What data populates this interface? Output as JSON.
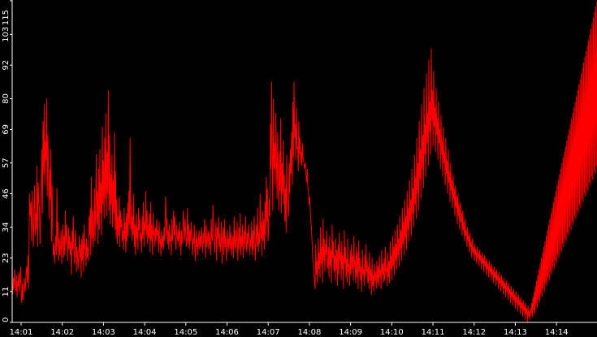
{
  "chart_data": {
    "type": "line",
    "title": "",
    "xlabel": "",
    "ylabel": "",
    "ylim": [
      0,
      115
    ],
    "y_ticks": [
      0,
      11,
      23,
      34,
      46,
      57,
      69,
      80,
      92,
      103,
      115
    ],
    "x_ticks": [
      "14:01",
      "14:02",
      "14:03",
      "14:04",
      "14:05",
      "14:06",
      "14:07",
      "14:08",
      "14:09",
      "14:10",
      "14:11",
      "14:12",
      "14:13",
      "14:14"
    ],
    "grid": false,
    "background": "#000000",
    "axis_color": "#ffffff",
    "series": [
      {
        "color": "#ff0000",
        "time_start": "14:00:47",
        "time_end": "14:14:59",
        "values": [
          13,
          10,
          16,
          12,
          19,
          14,
          11,
          17,
          9,
          15,
          13,
          18,
          11,
          16,
          20,
          10,
          7,
          14,
          8,
          12,
          16,
          11,
          13,
          18,
          20,
          14,
          24,
          12,
          33,
          46,
          38,
          43,
          29,
          47,
          35,
          27,
          40,
          49,
          31,
          39,
          33,
          56,
          27,
          50,
          43,
          41,
          28,
          35,
          48,
          62,
          39,
          72,
          53,
          78,
          49,
          65,
          58,
          80,
          45,
          67,
          56,
          37,
          55,
          44,
          62,
          29,
          49,
          33,
          24,
          28,
          21,
          26,
          31,
          24,
          48,
          27,
          36,
          22,
          30,
          24,
          27,
          33,
          21,
          29,
          35,
          23,
          31,
          24,
          40,
          28,
          35,
          30,
          22,
          34,
          26,
          31,
          24,
          29,
          17,
          33,
          26,
          38,
          25,
          21,
          29,
          33,
          18,
          27,
          24,
          19,
          24,
          31,
          23,
          28,
          16,
          30,
          22,
          32,
          18,
          35,
          26,
          28,
          20,
          30,
          23,
          27,
          22,
          38,
          31,
          41,
          24,
          52,
          30,
          40,
          27,
          33,
          48,
          29,
          41,
          60,
          35,
          47,
          28,
          55,
          33,
          62,
          39,
          50,
          31,
          70,
          42,
          58,
          37,
          66,
          44,
          75,
          38,
          61,
          46,
          83,
          40,
          67,
          35,
          53,
          42,
          60,
          34,
          51,
          39,
          68,
          33,
          54,
          30,
          44,
          28,
          38,
          31,
          45,
          27,
          40,
          34,
          37,
          29,
          33,
          26,
          41,
          30,
          36,
          25,
          39,
          29,
          43,
          31,
          47,
          35,
          66,
          33,
          42,
          29,
          38,
          31,
          46,
          27,
          35,
          24,
          39,
          30,
          34,
          26,
          41,
          33,
          37,
          29,
          32,
          25,
          38,
          30,
          43,
          27,
          36,
          33,
          47,
          31,
          40,
          28,
          35,
          30,
          39,
          25,
          43,
          29,
          35,
          24,
          39,
          31,
          33,
          27,
          34,
          29,
          37,
          31,
          33,
          25,
          36,
          28,
          30,
          24,
          33,
          27,
          31,
          26,
          34,
          29,
          38,
          45,
          31,
          37,
          28,
          33,
          26,
          35,
          29,
          31,
          24,
          37,
          29,
          33,
          40,
          31,
          38,
          28,
          26,
          35,
          31,
          29,
          33,
          27,
          36,
          30,
          24,
          33,
          28,
          31,
          40,
          34,
          29,
          37,
          32,
          27,
          30,
          41,
          28,
          35,
          26,
          33,
          29,
          36,
          31,
          24,
          30,
          28,
          35,
          26,
          22,
          33,
          27,
          30,
          24,
          29,
          33,
          26,
          31,
          27,
          34,
          29,
          25,
          32,
          28,
          37,
          31,
          23,
          35,
          27,
          30,
          33,
          26,
          32,
          28,
          24,
          37,
          30,
          29,
          42,
          33,
          28,
          25,
          31,
          36,
          22,
          34,
          30,
          38,
          27,
          32,
          25,
          29,
          36,
          21,
          30,
          34,
          24,
          37,
          27,
          31,
          22,
          28,
          33,
          25,
          30,
          27,
          35,
          26,
          32,
          24,
          29,
          31,
          23,
          38,
          27,
          33,
          25,
          30,
          36,
          22,
          28,
          34,
          26,
          39,
          24,
          31,
          27,
          35,
          23,
          30,
          33,
          26,
          38,
          29,
          25,
          32,
          28,
          35,
          31,
          24,
          30,
          27,
          36,
          24,
          33,
          26,
          38,
          31,
          22,
          29,
          35,
          27,
          41,
          25,
          32,
          28,
          46,
          30,
          36,
          24,
          40,
          29,
          37,
          26,
          43,
          31,
          52,
          36,
          48,
          29,
          33,
          44,
          38,
          71,
          55,
          86,
          60,
          40,
          80,
          55,
          64,
          49,
          75,
          58,
          44,
          68,
          52,
          40,
          61,
          47,
          73,
          39,
          57,
          46,
          65,
          42,
          53,
          36,
          48,
          32,
          60,
          44,
          41,
          38,
          57,
          46,
          62,
          53,
          68,
          49,
          79,
          59,
          86,
          66,
          71,
          58,
          77,
          62,
          63,
          54,
          72,
          60,
          66,
          57,
          61,
          56,
          64,
          59,
          58,
          55,
          56,
          57,
          52,
          50,
          55,
          48,
          46,
          42,
          45,
          39,
          36,
          33,
          28,
          23,
          21,
          17,
          14,
          12,
          28,
          17,
          22,
          14,
          30,
          19,
          25,
          16,
          34,
          21,
          27,
          14,
          37,
          22,
          30,
          18,
          28,
          24,
          33,
          21,
          19,
          27,
          16,
          31,
          20,
          26,
          14,
          35,
          23,
          29,
          18,
          24,
          15,
          30,
          19,
          26,
          13,
          28,
          17,
          32,
          22,
          25,
          15,
          29,
          19,
          24,
          12,
          33,
          21,
          27,
          16,
          23,
          14,
          30,
          18,
          21,
          13,
          26,
          17,
          28,
          19,
          24,
          15,
          31,
          20,
          22,
          14,
          27,
          16,
          25,
          12,
          29,
          18,
          23,
          15,
          20,
          11,
          26,
          17,
          19,
          13,
          24,
          16,
          28,
          18,
          22,
          14,
          20,
          12,
          25,
          15,
          19,
          10,
          23,
          13,
          17,
          11,
          21,
          15,
          18,
          12,
          22,
          14,
          20,
          13,
          24,
          16,
          19,
          12,
          26,
          17,
          21,
          14,
          23,
          15,
          27,
          18,
          20,
          13,
          25,
          16,
          22,
          14,
          29,
          19,
          24,
          15,
          31,
          20,
          27,
          17,
          33,
          22,
          28,
          19,
          35,
          24,
          30,
          20,
          38,
          26,
          33,
          22,
          41,
          28,
          36,
          24,
          44,
          30,
          38,
          26,
          47,
          33,
          41,
          29,
          51,
          36,
          44,
          31,
          55,
          39,
          48,
          34,
          60,
          42,
          52,
          37,
          66,
          46,
          57,
          40,
          72,
          51,
          62,
          44,
          78,
          55,
          67,
          48,
          84,
          60,
          71,
          52,
          89,
          64,
          75,
          56,
          94,
          68,
          79,
          60,
          98,
          72,
          83,
          63,
          90,
          70,
          77,
          61,
          84,
          67,
          73,
          58,
          79,
          64,
          69,
          55,
          74,
          60,
          65,
          52,
          70,
          57,
          61,
          49,
          66,
          53,
          58,
          46,
          62,
          50,
          54,
          43,
          57,
          47,
          51,
          41,
          53,
          44,
          48,
          38,
          49,
          41,
          45,
          35,
          46,
          38,
          42,
          33,
          43,
          36,
          39,
          31,
          40,
          33,
          36,
          29,
          37,
          31,
          33,
          27,
          34,
          29,
          31,
          25,
          32,
          27,
          29,
          23,
          30,
          25,
          27,
          22,
          28,
          24,
          26,
          21,
          27,
          23,
          25,
          20,
          26,
          22,
          24,
          19,
          25,
          21,
          23,
          18,
          24,
          20,
          22,
          17,
          23,
          19,
          21,
          16,
          22,
          18,
          20,
          15,
          21,
          17,
          19,
          14,
          20,
          16,
          18,
          13,
          19,
          15,
          17,
          12,
          18,
          14,
          16,
          11,
          17,
          13,
          15,
          10,
          16,
          12,
          14,
          9,
          15,
          11,
          13,
          8,
          14,
          10,
          12,
          7,
          13,
          9,
          11,
          6,
          12,
          8,
          10,
          5,
          11,
          7,
          9,
          4,
          10,
          6,
          8,
          3,
          9,
          5,
          7,
          2,
          8,
          4,
          6,
          1,
          7,
          3,
          5,
          0,
          6,
          2,
          4,
          1,
          5,
          3,
          7,
          2,
          9,
          4,
          11,
          3,
          13,
          6,
          15,
          5,
          17,
          8,
          19,
          7,
          21,
          10,
          23,
          9,
          25,
          12,
          27,
          11,
          29,
          14,
          31,
          13,
          33,
          16,
          35,
          15,
          37,
          18,
          39,
          17,
          41,
          20,
          43,
          19,
          45,
          22,
          47,
          21,
          49,
          24,
          51,
          23,
          53,
          26,
          55,
          25,
          57,
          28,
          59,
          27,
          61,
          30,
          63,
          29,
          65,
          32,
          67,
          31,
          69,
          34,
          71,
          33,
          73,
          36,
          75,
          35,
          77,
          38,
          79,
          37,
          81,
          40,
          83,
          39,
          85,
          42,
          87,
          41,
          89,
          44,
          91,
          43,
          93,
          46,
          95,
          45,
          97,
          48,
          99,
          47,
          101,
          50,
          103,
          49,
          105,
          52,
          107,
          51,
          109,
          54,
          111,
          53,
          113,
          56,
          115
        ]
      }
    ]
  }
}
